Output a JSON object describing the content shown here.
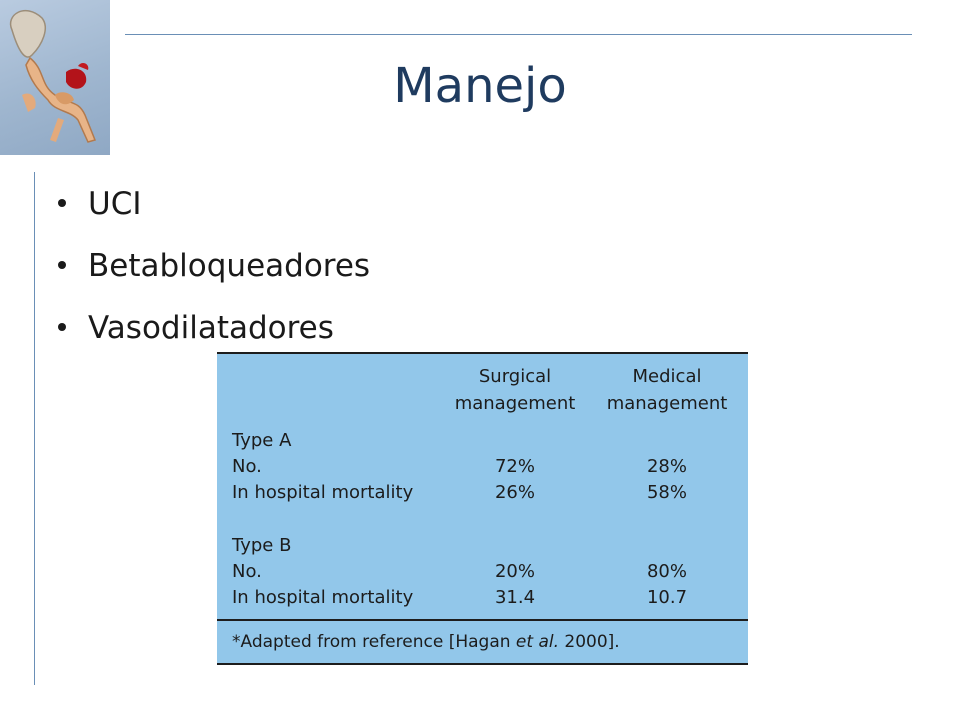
{
  "slide": {
    "title": "Manejo",
    "bullets": [
      "UCI",
      "Betabloqueadores",
      "Vasodilatadores"
    ]
  },
  "table": {
    "headers": {
      "surgical": [
        "Surgical",
        "management"
      ],
      "medical": [
        "Medical",
        "management"
      ]
    },
    "groups": [
      {
        "label": "Type A",
        "rows": [
          {
            "label": "No.",
            "surgical": "72%",
            "medical": "28%"
          },
          {
            "label": "In hospital mortality",
            "surgical": "26%",
            "medical": "58%"
          }
        ]
      },
      {
        "label": "Type B",
        "rows": [
          {
            "label": "No.",
            "surgical": "20%",
            "medical": "80%"
          },
          {
            "label": "In hospital mortality",
            "surgical": "31.4",
            "medical": "10.7"
          }
        ]
      }
    ],
    "footnote": {
      "pre": "*Adapted from reference [Hagan ",
      "italic": "et al.",
      "post": " 2000]."
    }
  },
  "colors": {
    "title": "#1f3b5f",
    "rule": "#6a8fb6",
    "table_bg": "#92c7ea"
  },
  "icons": [
    "aorta-illustration"
  ]
}
